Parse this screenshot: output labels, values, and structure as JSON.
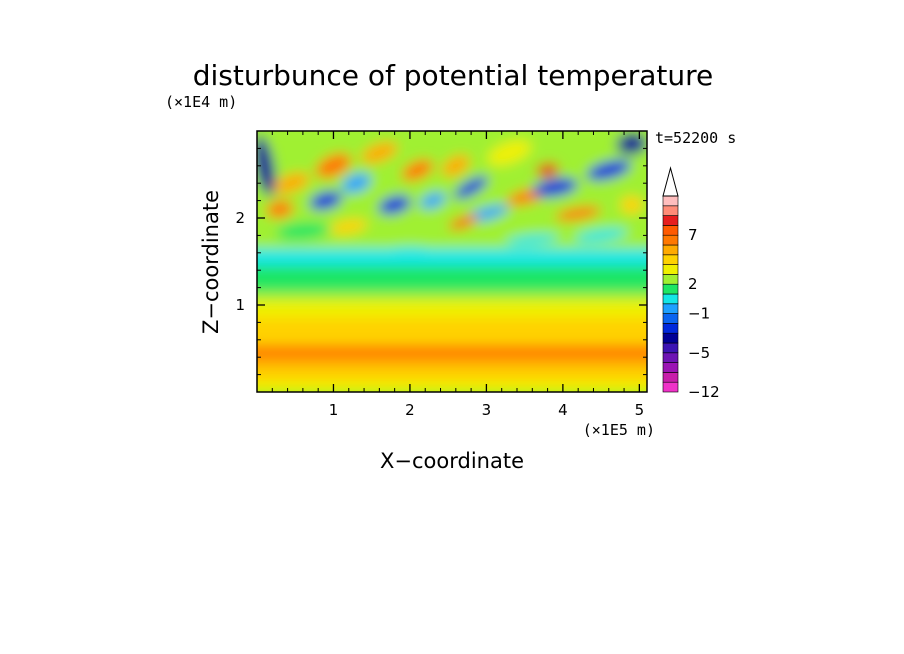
{
  "chart_data": {
    "type": "heatmap",
    "title": "disturbunce of potential temperature",
    "time_label": "t=52200 s",
    "xlabel": "X−coordinate",
    "ylabel": "Z−coordinate",
    "x_unit": "(×1E5 m)",
    "y_unit": "(×1E4 m)",
    "xlim": [
      0,
      5.1
    ],
    "ylim": [
      0,
      3.0
    ],
    "x_ticks": [
      "1",
      "2",
      "3",
      "4",
      "5"
    ],
    "y_ticks": [
      "1",
      "2"
    ],
    "colorbar": {
      "levels": [
        -12,
        -10,
        -8,
        -6,
        -5,
        -4,
        -3,
        -2,
        -1,
        0,
        1,
        2,
        3,
        4,
        5,
        6,
        7,
        8,
        9,
        10
      ],
      "labels": [
        "−12",
        "−5",
        "−1",
        "2",
        "7"
      ],
      "colors": [
        "#f032c8",
        "#c81eaa",
        "#9b14b4",
        "#6e14b4",
        "#3c14b4",
        "#000096",
        "#0028dc",
        "#0a64f0",
        "#1ea0ff",
        "#14e6e6",
        "#1ee664",
        "#a0f032",
        "#f0f000",
        "#ffd200",
        "#ffaa00",
        "#ff7800",
        "#ff5a00",
        "#e61e1e",
        "#ff8c78",
        "#ffbebe"
      ],
      "extend": "max"
    },
    "grid": false
  }
}
